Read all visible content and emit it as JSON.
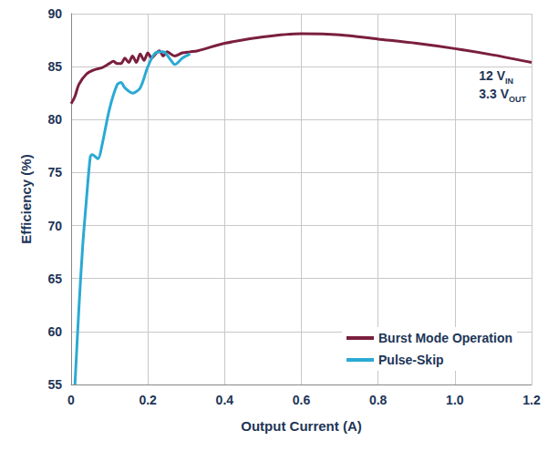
{
  "chart_data": {
    "type": "line",
    "x_label": "Output Current (A)",
    "y_label": "Efficiency (%)",
    "xlim": [
      0,
      1.2
    ],
    "ylim": [
      55,
      90
    ],
    "xticks": [
      0,
      0.2,
      0.4,
      0.6,
      0.8,
      {
        "value": 1,
        "label": "1.0"
      },
      1.2
    ],
    "yticks": [
      55,
      60,
      65,
      70,
      75,
      80,
      85,
      90
    ],
    "grid": true,
    "legend": "lower right",
    "annotations": [
      {
        "text": "12 V",
        "subscript": "IN"
      },
      {
        "text": "3.3 V",
        "subscript": "OUT"
      }
    ],
    "series": [
      {
        "name": "Burst Mode Operation",
        "color": "#7a1f3d",
        "x": [
          0,
          0.01,
          0.02,
          0.04,
          0.06,
          0.08,
          0.1,
          0.11,
          0.12,
          0.13,
          0.14,
          0.15,
          0.16,
          0.17,
          0.18,
          0.19,
          0.2,
          0.21,
          0.22,
          0.23,
          0.24,
          0.25,
          0.27,
          0.29,
          0.31,
          0.33,
          0.4,
          0.5,
          0.6,
          0.7,
          0.8,
          0.9,
          1.0,
          1.1,
          1.2
        ],
        "values": [
          81.5,
          82.2,
          83.3,
          84.3,
          84.7,
          84.9,
          85.3,
          85.5,
          85.3,
          85.3,
          85.8,
          85.4,
          86.0,
          85.4,
          86.2,
          85.6,
          86.3,
          85.8,
          86.2,
          86.5,
          86.0,
          86.4,
          86.0,
          86.3,
          86.4,
          86.5,
          87.2,
          87.8,
          88.1,
          88.0,
          87.6,
          87.2,
          86.7,
          86.1,
          85.4
        ]
      },
      {
        "name": "Pulse-Skip",
        "color": "#2aaad4",
        "x": [
          0.01,
          0.02,
          0.03,
          0.04,
          0.05,
          0.055,
          0.07,
          0.08,
          0.1,
          0.12,
          0.13,
          0.14,
          0.16,
          0.18,
          0.2,
          0.22,
          0.24,
          0.26,
          0.27,
          0.29,
          0.31
        ],
        "values": [
          55,
          62,
          68,
          72.5,
          76.5,
          76.7,
          76.3,
          77.5,
          81,
          83.3,
          83.5,
          83.0,
          82.5,
          83.0,
          85.0,
          86.3,
          86.4,
          85.6,
          85.2,
          85.8,
          86.2
        ]
      }
    ]
  }
}
